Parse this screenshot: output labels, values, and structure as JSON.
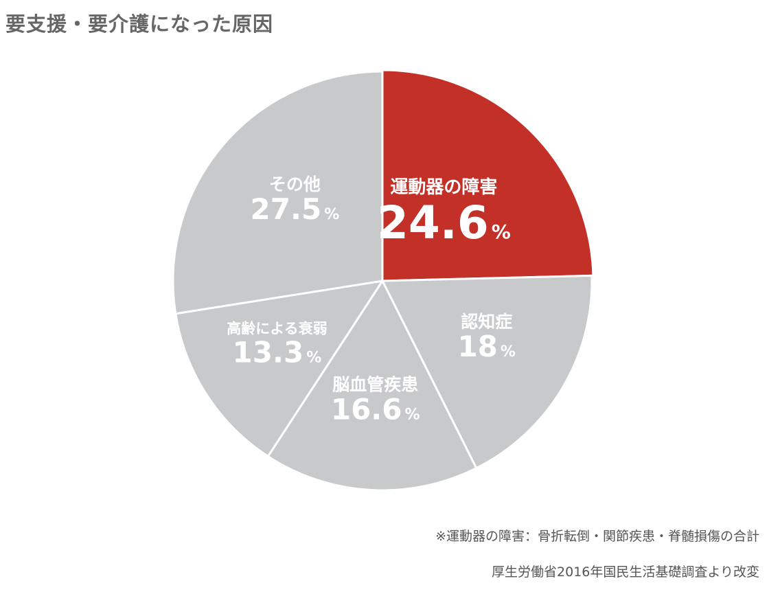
{
  "title": "要支援・要介護になった原因",
  "chart_data": {
    "type": "pie",
    "title": "要支援・要介護になった原因",
    "unit": "%",
    "slices": [
      {
        "label": "運動器の障害",
        "value": 24.6,
        "display": "24.6",
        "color": "#c33028",
        "highlight": true
      },
      {
        "label": "認知症",
        "value": 18,
        "display": "18",
        "color": "#c8c9cb",
        "highlight": false
      },
      {
        "label": "脳血管疾患",
        "value": 16.6,
        "display": "16.6",
        "color": "#c8c9cb",
        "highlight": false
      },
      {
        "label": "高齢による衰弱",
        "value": 13.3,
        "display": "13.3",
        "color": "#c8c9cb",
        "highlight": false
      },
      {
        "label": "その他",
        "value": 27.5,
        "display": "27.5",
        "color": "#c8c9cb",
        "highlight": false
      }
    ]
  },
  "footnotes": {
    "note": "※運動器の障害：骨折転倒・関節疾患・脊髄損傷の合計",
    "source": "厚生労働省2016年国民生活基礎調査より改変"
  }
}
